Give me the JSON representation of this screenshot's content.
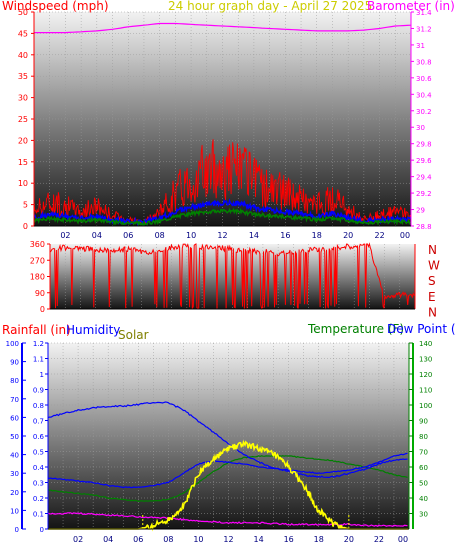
{
  "header": {
    "left_title": "Windspeed (mph)",
    "center_title": "24 hour graph day - April 27 2025",
    "right_title": "Barometer (in)"
  },
  "colors": {
    "windspeed": "#ff0000",
    "wind_mid": "#0000ff",
    "wind_low": "#008000",
    "barometer": "#ff00ff",
    "title_center": "#cccc00",
    "direction": "#ff0000",
    "humidity": "#0000ff",
    "solar": "#ffff00",
    "temperature": "#008000",
    "dewpoint": "#0000ff",
    "rainfall": "#ff00ff",
    "solar_label": "#808000",
    "panel_top": "#f2f2f2",
    "panel_bottom": "#141414"
  },
  "chart_data": [
    {
      "type": "line",
      "x_tick_labels": [
        "02",
        "04",
        "06",
        "08",
        "10",
        "12",
        "14",
        "16",
        "18",
        "20",
        "22",
        "00"
      ],
      "y_left": {
        "label": "Windspeed (mph)",
        "ticks": [
          "0",
          "5",
          "10",
          "15",
          "20",
          "25",
          "30",
          "35",
          "40",
          "45",
          "50"
        ],
        "range": [
          0,
          50
        ]
      },
      "y_right": {
        "label": "Barometer (in)",
        "ticks": [
          "28.8",
          "29",
          "29.2",
          "29.4",
          "29.6",
          "29.8",
          "30",
          "30.2",
          "30.4",
          "30.6",
          "30.8",
          "31",
          "31.2",
          "31.4"
        ],
        "range": [
          28.8,
          31.4
        ]
      },
      "series": [
        {
          "name": "Barometer (in)",
          "axis": "right",
          "x": [
            0,
            1,
            2,
            3,
            4,
            5,
            6,
            7,
            8,
            9,
            10,
            11,
            12,
            13,
            14,
            15,
            16,
            17,
            18,
            19,
            20,
            21,
            22,
            23,
            24
          ],
          "y": [
            31.15,
            31.15,
            31.15,
            31.16,
            31.17,
            31.19,
            31.22,
            31.24,
            31.26,
            31.26,
            31.25,
            31.24,
            31.23,
            31.22,
            31.21,
            31.2,
            31.19,
            31.18,
            31.17,
            31.17,
            31.17,
            31.18,
            31.2,
            31.23,
            31.24
          ]
        },
        {
          "name": "Windspeed (mph)",
          "axis": "left",
          "x": [
            0,
            1,
            2,
            3,
            4,
            5,
            6,
            7,
            8,
            9,
            10,
            11,
            12,
            13,
            14,
            15,
            16,
            17,
            18,
            19,
            20,
            21,
            22,
            23,
            24
          ],
          "y": [
            5,
            7,
            6,
            4,
            6,
            3,
            2,
            1,
            4,
            10,
            14,
            16,
            17,
            17,
            13,
            11,
            10,
            8,
            6,
            8,
            5,
            2,
            3,
            4,
            3
          ]
        }
      ]
    },
    {
      "type": "line",
      "x_tick_labels": [
        "02",
        "04",
        "06",
        "08",
        "10",
        "12",
        "14",
        "16",
        "18",
        "20",
        "22",
        "00"
      ],
      "y_left": {
        "ticks": [
          "0",
          "90",
          "180",
          "270",
          "360"
        ],
        "range": [
          0,
          360
        ]
      },
      "y_right": {
        "ticks": [
          "N",
          "W",
          "S",
          "E",
          "N"
        ]
      },
      "series": [
        {
          "name": "Wind direction",
          "axis": "left",
          "x": [
            0,
            1,
            2,
            3,
            4,
            5,
            6,
            7,
            8,
            9,
            10,
            11,
            12,
            13,
            14,
            15,
            16,
            17,
            18,
            19,
            20,
            21,
            22,
            23,
            24
          ],
          "y": [
            330,
            340,
            335,
            330,
            325,
            330,
            320,
            310,
            340,
            350,
            345,
            340,
            330,
            320,
            320,
            310,
            315,
            325,
            330,
            340,
            350,
            355,
            60,
            80,
            75
          ]
        }
      ]
    },
    {
      "type": "line",
      "labels": {
        "rainfall": "Rainfall (in)",
        "humidity": "Humidity",
        "solar": "Solar",
        "temperature": "Temperature (F)",
        "dewpoint": "Dew Point (F)"
      },
      "x_tick_labels": [
        "02",
        "04",
        "06",
        "08",
        "10",
        "12",
        "14",
        "16",
        "18",
        "20",
        "22",
        "00"
      ],
      "y_rain": {
        "ticks": [
          "0",
          "0.1",
          "0.2",
          "0.3",
          "0.4",
          "0.5",
          "0.6",
          "0.7",
          "0.8",
          "0.9",
          "1",
          "1.1",
          "1.2"
        ],
        "range": [
          0,
          1.2
        ]
      },
      "y_humidity": {
        "ticks": [
          "0",
          "10",
          "20",
          "30",
          "40",
          "50",
          "60",
          "70",
          "80",
          "90",
          "100"
        ],
        "range": [
          0,
          100
        ]
      },
      "y_temp": {
        "ticks": [
          "30",
          "40",
          "50",
          "60",
          "70",
          "80",
          "90",
          "100",
          "110",
          "120",
          "130",
          "140"
        ],
        "range": [
          20,
          140
        ]
      },
      "series": [
        {
          "name": "Humidity",
          "axis": "humidity",
          "x": [
            0,
            1,
            2,
            3,
            4,
            5,
            6,
            7,
            8,
            9,
            10,
            11,
            12,
            13,
            14,
            15,
            16,
            17,
            18,
            19,
            20,
            21,
            22,
            23,
            24
          ],
          "y": [
            60,
            62,
            64,
            65,
            66,
            66,
            67,
            68,
            68,
            64,
            58,
            52,
            46,
            40,
            36,
            33,
            31,
            29,
            28,
            28,
            30,
            32,
            35,
            37,
            38
          ]
        },
        {
          "name": "Temperature (F)",
          "axis": "temp",
          "x": [
            0,
            1,
            2,
            3,
            4,
            5,
            6,
            7,
            8,
            9,
            10,
            11,
            12,
            13,
            14,
            15,
            16,
            17,
            18,
            19,
            20,
            21,
            22,
            23,
            24
          ],
          "y": [
            45,
            44,
            43,
            42,
            40,
            39,
            38,
            38,
            39,
            43,
            50,
            57,
            63,
            66,
            67,
            67,
            67,
            66,
            65,
            64,
            62,
            60,
            58,
            55,
            53
          ]
        },
        {
          "name": "Dew Point (F)",
          "axis": "temp",
          "x": [
            0,
            1,
            2,
            3,
            4,
            5,
            6,
            7,
            8,
            9,
            10,
            11,
            12,
            13,
            14,
            15,
            16,
            17,
            18,
            19,
            20,
            21,
            22,
            23,
            24
          ],
          "y": [
            53,
            52,
            51,
            50,
            48,
            47,
            47,
            48,
            50,
            56,
            62,
            64,
            63,
            62,
            60,
            59,
            58,
            57,
            56,
            57,
            58,
            60,
            63,
            67,
            69
          ]
        },
        {
          "name": "Solar",
          "axis": "rain",
          "x": [
            0,
            6,
            7,
            8,
            9,
            10,
            11,
            12,
            13,
            14,
            15,
            16,
            17,
            18,
            19,
            20,
            24
          ],
          "y": [
            0,
            0,
            0.02,
            0.06,
            0.14,
            0.36,
            0.45,
            0.52,
            0.55,
            0.52,
            0.48,
            0.4,
            0.28,
            0.12,
            0.03,
            0,
            0
          ]
        },
        {
          "name": "Rainfall (in)",
          "axis": "rain",
          "x": [
            0,
            2,
            4,
            6,
            8,
            10,
            12,
            14,
            16,
            18,
            20,
            22,
            24
          ],
          "y": [
            0.1,
            0.1,
            0.09,
            0.08,
            0.07,
            0.05,
            0.04,
            0.04,
            0.03,
            0.03,
            0.03,
            0.02,
            0.02
          ]
        }
      ]
    }
  ]
}
